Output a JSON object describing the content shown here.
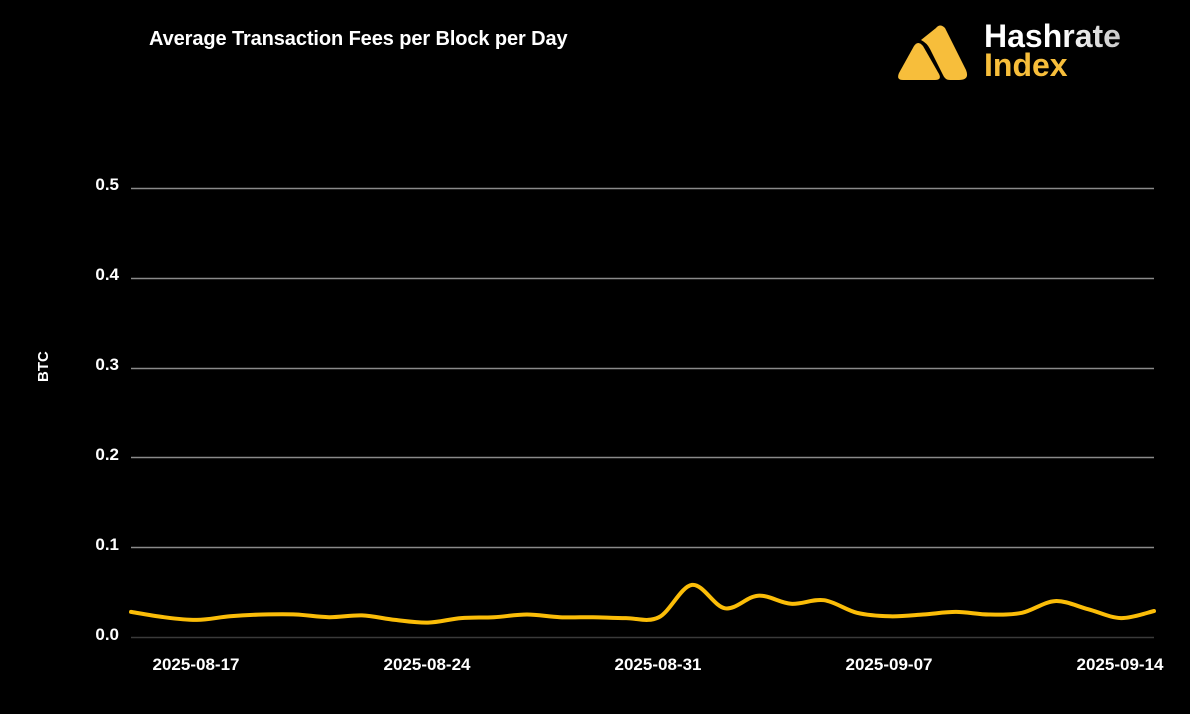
{
  "header": {
    "title": "Average Transaction Fees per Block per Day"
  },
  "logo": {
    "line1": "Hashrate",
    "line2": "Index",
    "brand_color": "#f7be3b"
  },
  "colors": {
    "background": "#000000",
    "gridline": "#8a8a8a",
    "baseline": "#3a3a3a",
    "series": "#fbbd08",
    "text": "#ffffff"
  },
  "chart_data": {
    "type": "line",
    "title": "Average Transaction Fees per Block per Day",
    "xlabel": "",
    "ylabel": "BTC",
    "ylim": [
      0,
      0.5
    ],
    "grid": true,
    "legend": null,
    "yticks": [
      "0.0",
      "0.1",
      "0.2",
      "0.3",
      "0.4",
      "0.5"
    ],
    "xticks": [
      "2025-08-17",
      "2025-08-24",
      "2025-08-31",
      "2025-09-07",
      "2025-09-14"
    ],
    "x": [
      "2025-08-15",
      "2025-08-16",
      "2025-08-17",
      "2025-08-18",
      "2025-08-19",
      "2025-08-20",
      "2025-08-21",
      "2025-08-22",
      "2025-08-23",
      "2025-08-24",
      "2025-08-25",
      "2025-08-26",
      "2025-08-27",
      "2025-08-28",
      "2025-08-29",
      "2025-08-30",
      "2025-08-31",
      "2025-09-01",
      "2025-09-02",
      "2025-09-03",
      "2025-09-04",
      "2025-09-05",
      "2025-09-06",
      "2025-09-07",
      "2025-09-08",
      "2025-09-09",
      "2025-09-10",
      "2025-09-11",
      "2025-09-12",
      "2025-09-13",
      "2025-09-14",
      "2025-09-15"
    ],
    "series": [
      {
        "name": "Average Transaction Fees per Block",
        "color": "#fbbd08",
        "values": [
          0.028,
          0.022,
          0.019,
          0.023,
          0.025,
          0.025,
          0.022,
          0.024,
          0.019,
          0.016,
          0.021,
          0.022,
          0.025,
          0.022,
          0.022,
          0.021,
          0.022,
          0.058,
          0.032,
          0.046,
          0.037,
          0.041,
          0.027,
          0.023,
          0.025,
          0.028,
          0.025,
          0.027,
          0.04,
          0.031,
          0.021,
          0.029
        ]
      }
    ]
  }
}
